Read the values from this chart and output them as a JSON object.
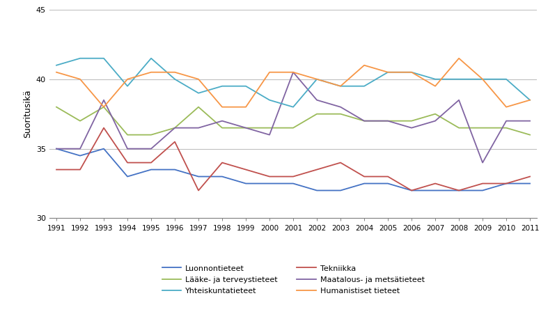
{
  "years": [
    1991,
    1992,
    1993,
    1994,
    1995,
    1996,
    1997,
    1998,
    1999,
    2000,
    2001,
    2002,
    2003,
    2004,
    2005,
    2006,
    2007,
    2008,
    2009,
    2010,
    2011
  ],
  "series": {
    "Luonnontieteet": [
      35.0,
      34.5,
      35.0,
      33.0,
      33.5,
      33.5,
      33.0,
      33.0,
      32.5,
      32.5,
      32.5,
      32.0,
      32.0,
      32.5,
      32.5,
      32.0,
      32.0,
      32.0,
      32.0,
      32.5,
      32.5
    ],
    "Tekniikka": [
      33.5,
      33.5,
      36.5,
      34.0,
      34.0,
      35.5,
      32.0,
      34.0,
      33.5,
      33.0,
      33.0,
      33.5,
      34.0,
      33.0,
      33.0,
      32.0,
      32.5,
      32.0,
      32.5,
      32.5,
      33.0
    ],
    "Lääke- ja terveystieteet": [
      38.0,
      37.0,
      38.0,
      36.0,
      36.0,
      36.5,
      38.0,
      36.5,
      36.5,
      36.5,
      36.5,
      37.5,
      37.5,
      37.0,
      37.0,
      37.0,
      37.5,
      36.5,
      36.5,
      36.5,
      36.0
    ],
    "Maatalous- ja metsätieteet": [
      35.0,
      35.0,
      38.5,
      35.0,
      35.0,
      36.5,
      36.5,
      37.0,
      36.5,
      36.0,
      40.5,
      38.5,
      38.0,
      37.0,
      37.0,
      36.5,
      37.0,
      38.5,
      34.0,
      37.0,
      37.0
    ],
    "Yhteiskuntatieteet": [
      41.0,
      41.5,
      41.5,
      39.5,
      41.5,
      40.0,
      39.0,
      39.5,
      39.5,
      38.5,
      38.0,
      40.0,
      39.5,
      39.5,
      40.5,
      40.5,
      40.0,
      40.0,
      40.0,
      40.0,
      38.5
    ],
    "Humanistiset tieteet": [
      40.5,
      40.0,
      38.0,
      40.0,
      40.5,
      40.5,
      40.0,
      38.0,
      38.0,
      40.5,
      40.5,
      40.0,
      39.5,
      41.0,
      40.5,
      40.5,
      39.5,
      41.5,
      40.0,
      38.0,
      38.5
    ]
  },
  "colors": {
    "Luonnontieteet": "#4472C4",
    "Tekniikka": "#C0504D",
    "Lääke- ja terveystieteet": "#9BBB59",
    "Maatalous- ja metsätieteet": "#8064A2",
    "Yhteiskuntatieteet": "#4BACC6",
    "Humanistiset tieteet": "#F79646"
  },
  "ylabel": "Suoritusikä",
  "ylim": [
    30,
    45
  ],
  "yticks": [
    30,
    35,
    40,
    45
  ],
  "background_color": "#ffffff",
  "grid_color": "#bfbfbf",
  "legend_order": [
    "Luonnontieteet",
    "Tekniikka",
    "Lääke- ja terveystieteet",
    "Maatalous- ja metsätieteet",
    "Yhteiskuntatieteet",
    "Humanistiset tieteet"
  ]
}
